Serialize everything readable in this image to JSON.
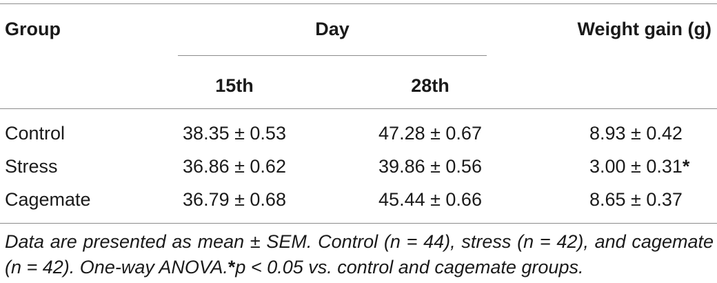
{
  "table": {
    "headers": {
      "group": "Group",
      "day": "Day",
      "weight_gain": "Weight gain (g)",
      "day_15": "15th",
      "day_28": "28th"
    },
    "rows": [
      {
        "group": "Control",
        "day_15": "38.35 ± 0.53",
        "day_28": "47.28 ± 0.67",
        "weight_gain": "8.93 ± 0.42",
        "mark": ""
      },
      {
        "group": "Stress",
        "day_15": "36.86 ± 0.62",
        "day_28": "39.86 ± 0.56",
        "weight_gain": "3.00 ± 0.31",
        "mark": "*"
      },
      {
        "group": "Cagemate",
        "day_15": "36.79 ± 0.68",
        "day_28": "45.44 ± 0.66",
        "weight_gain": "8.65 ± 0.37",
        "mark": ""
      }
    ]
  },
  "footnote": {
    "text_before": "Data are presented as mean ± SEM. Control (n = 44), stress (n = 42), and cagemate (n = 42). One-way ANOVA.",
    "asterisk": "*",
    "text_after": "p < 0.05 vs. control and cagemate groups."
  }
}
